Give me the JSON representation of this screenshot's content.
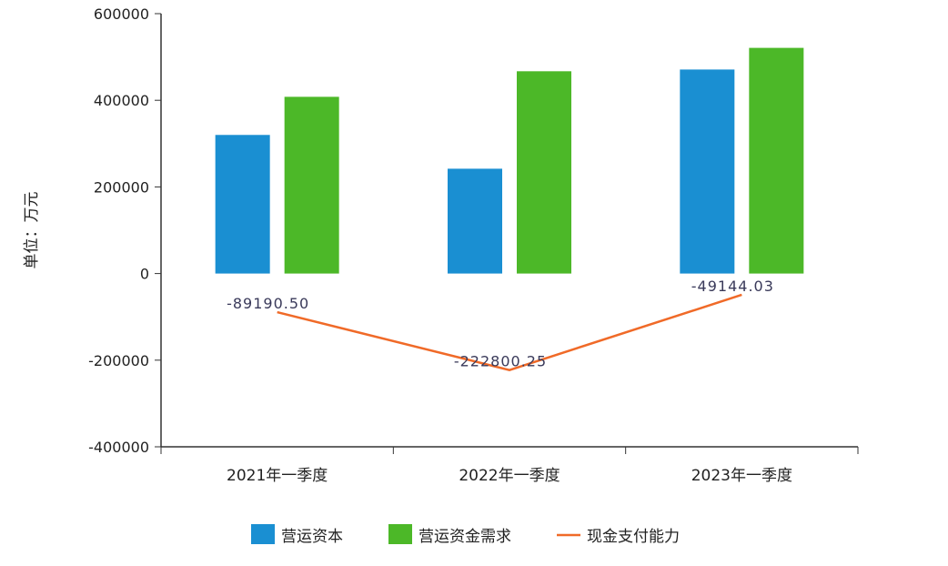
{
  "chart_data": {
    "type": "bar",
    "ylabel": "单位：万元",
    "ylim": [
      -400000,
      600000
    ],
    "yticks": [
      600000,
      400000,
      200000,
      0,
      -200000,
      -400000
    ],
    "ytick_labels": [
      "600000",
      "400000",
      "200000",
      "0",
      "-200000",
      "-400000"
    ],
    "categories": [
      "2021年一季度",
      "2022年一季度",
      "2023年一季度"
    ],
    "series": [
      {
        "name": "营运资本",
        "type": "bar",
        "color": "#1a8fd2",
        "values": [
          320000,
          242000,
          471000
        ]
      },
      {
        "name": "营运资金需求",
        "type": "bar",
        "color": "#4cb828",
        "values": [
          408000,
          467000,
          521000
        ]
      },
      {
        "name": "现金支付能力",
        "type": "line",
        "color": "#f06a28",
        "values": [
          -89190.5,
          -222800.25,
          -49144.03
        ],
        "data_labels": [
          "-89190.50",
          "-222800.25",
          "-49144.03"
        ]
      }
    ],
    "legend": "bottom",
    "grid": false
  }
}
